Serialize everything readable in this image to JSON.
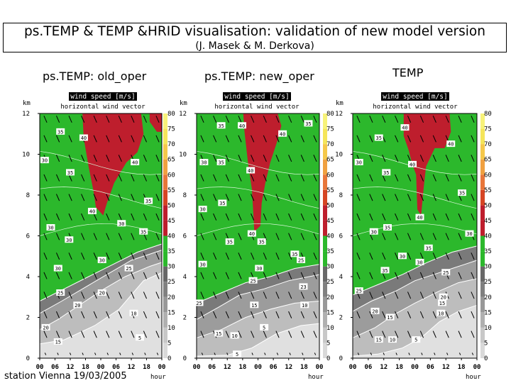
{
  "header": {
    "title": "ps.TEMP & TEMP &HRID visualisation: validation of new model version",
    "subtitle": "(J. Masek & M. Derkova)"
  },
  "footer": {
    "station": "station Vienna 19/03/2005"
  },
  "colors": {
    "green": "#2cb82c",
    "red": "#be1e2d",
    "dark_grey": "#6e6e6e",
    "mid_grey": "#9a9a9a",
    "light_grey": "#c8c8c8",
    "pale_grey": "#e3e3e3"
  },
  "chart_data": [
    {
      "type": "heatmap",
      "title": "ps.TEMP: old_oper",
      "plot_title": "wind speed [m/s]",
      "subtitle": "horizontal wind vector",
      "ylabel": "km",
      "xlabel": "hour",
      "x_ticks": [
        "00",
        "06",
        "12",
        "18",
        "00",
        "06",
        "12",
        "18",
        "00"
      ],
      "y_ticks": [
        0,
        2,
        4,
        6,
        8,
        10,
        12
      ],
      "ylim": [
        0,
        12
      ],
      "colorbar_ticks": [
        0,
        5,
        10,
        15,
        20,
        25,
        30,
        35,
        40,
        45,
        50,
        55,
        60,
        65,
        70,
        75,
        80
      ],
      "contour_labels": [
        {
          "value": 35,
          "x": 0.17,
          "y": 11.1
        },
        {
          "value": 40,
          "x": 0.36,
          "y": 10.8
        },
        {
          "value": 30,
          "x": 0.04,
          "y": 9.7
        },
        {
          "value": 35,
          "x": 0.25,
          "y": 9.1
        },
        {
          "value": 40,
          "x": 0.78,
          "y": 9.6
        },
        {
          "value": 35,
          "x": 0.89,
          "y": 7.7
        },
        {
          "value": 40,
          "x": 0.43,
          "y": 7.2
        },
        {
          "value": 30,
          "x": 0.09,
          "y": 6.4
        },
        {
          "value": 30,
          "x": 0.67,
          "y": 6.6
        },
        {
          "value": 35,
          "x": 0.85,
          "y": 6.2
        },
        {
          "value": 30,
          "x": 0.24,
          "y": 5.8
        },
        {
          "value": 30,
          "x": 0.51,
          "y": 4.8
        },
        {
          "value": 30,
          "x": 0.15,
          "y": 4.4
        },
        {
          "value": 25,
          "x": 0.73,
          "y": 4.4
        },
        {
          "value": 25,
          "x": 0.17,
          "y": 3.2
        },
        {
          "value": 20,
          "x": 0.51,
          "y": 3.2
        },
        {
          "value": 20,
          "x": 0.31,
          "y": 2.6
        },
        {
          "value": 10,
          "x": 0.77,
          "y": 2.2
        },
        {
          "value": 20,
          "x": 0.05,
          "y": 1.5
        },
        {
          "value": 5,
          "x": 0.82,
          "y": 1.0
        },
        {
          "value": 15,
          "x": 0.15,
          "y": 0.8
        }
      ]
    },
    {
      "type": "heatmap",
      "title": "ps.TEMP: new_oper",
      "plot_title": "wind speed [m/s]",
      "subtitle": "horizontal wind vector",
      "ylabel": "km",
      "xlabel": "hour",
      "x_ticks": [
        "00",
        "06",
        "12",
        "18",
        "00",
        "06",
        "12",
        "18",
        "00"
      ],
      "y_ticks": [
        0,
        2,
        4,
        6,
        8,
        10,
        12
      ],
      "ylim": [
        0,
        12
      ],
      "colorbar_ticks": [
        0,
        5,
        10,
        15,
        20,
        25,
        30,
        35,
        40,
        45,
        50,
        55,
        60,
        65,
        70,
        75,
        80
      ],
      "contour_labels": [
        {
          "value": 35,
          "x": 0.2,
          "y": 11.4
        },
        {
          "value": 40,
          "x": 0.37,
          "y": 11.4
        },
        {
          "value": 35,
          "x": 0.91,
          "y": 11.5
        },
        {
          "value": 40,
          "x": 0.7,
          "y": 11.0
        },
        {
          "value": 30,
          "x": 0.06,
          "y": 9.6
        },
        {
          "value": 35,
          "x": 0.2,
          "y": 9.6
        },
        {
          "value": 40,
          "x": 0.44,
          "y": 9.2
        },
        {
          "value": 30,
          "x": 0.05,
          "y": 7.3
        },
        {
          "value": 35,
          "x": 0.21,
          "y": 7.6
        },
        {
          "value": 40,
          "x": 0.45,
          "y": 6.1
        },
        {
          "value": 35,
          "x": 0.27,
          "y": 5.7
        },
        {
          "value": 35,
          "x": 0.53,
          "y": 5.7
        },
        {
          "value": 35,
          "x": 0.8,
          "y": 5.1
        },
        {
          "value": 30,
          "x": 0.05,
          "y": 4.6
        },
        {
          "value": 30,
          "x": 0.51,
          "y": 4.4
        },
        {
          "value": 25,
          "x": 0.85,
          "y": 4.8
        },
        {
          "value": 25,
          "x": 0.46,
          "y": 3.8
        },
        {
          "value": 25,
          "x": 0.02,
          "y": 2.7
        },
        {
          "value": 23,
          "x": 0.87,
          "y": 3.5
        },
        {
          "value": 15,
          "x": 0.47,
          "y": 2.6
        },
        {
          "value": 10,
          "x": 0.88,
          "y": 2.6
        },
        {
          "value": 5,
          "x": 0.55,
          "y": 1.5
        },
        {
          "value": 15,
          "x": 0.18,
          "y": 1.2
        },
        {
          "value": 10,
          "x": 0.31,
          "y": 1.1
        },
        {
          "value": 5,
          "x": 0.33,
          "y": 0.2
        }
      ]
    },
    {
      "type": "heatmap",
      "title": "TEMP",
      "plot_title": "wind speed [m/s]",
      "subtitle": "horizontal wind vector",
      "ylabel": "km",
      "xlabel": "hour",
      "x_ticks": [
        "00",
        "06",
        "12",
        "18",
        "00",
        "06",
        "12",
        "18",
        "00"
      ],
      "y_ticks": [
        0,
        2,
        4,
        6,
        8,
        10,
        12
      ],
      "ylim": [
        0,
        12
      ],
      "colorbar_ticks": [
        0,
        5,
        10,
        15,
        20,
        25,
        30,
        35,
        40,
        45,
        50,
        55,
        60,
        65,
        70,
        75,
        80
      ],
      "contour_labels": [
        {
          "value": 40,
          "x": 0.42,
          "y": 11.3
        },
        {
          "value": 35,
          "x": 0.21,
          "y": 10.8
        },
        {
          "value": 40,
          "x": 0.79,
          "y": 10.5
        },
        {
          "value": 30,
          "x": 0.05,
          "y": 9.6
        },
        {
          "value": 40,
          "x": 0.48,
          "y": 9.5
        },
        {
          "value": 35,
          "x": 0.27,
          "y": 9.1
        },
        {
          "value": 35,
          "x": 0.88,
          "y": 8.1
        },
        {
          "value": 40,
          "x": 0.54,
          "y": 6.9
        },
        {
          "value": 35,
          "x": 0.28,
          "y": 6.4
        },
        {
          "value": 30,
          "x": 0.17,
          "y": 6.2
        },
        {
          "value": 30,
          "x": 0.94,
          "y": 6.1
        },
        {
          "value": 35,
          "x": 0.61,
          "y": 5.4
        },
        {
          "value": 30,
          "x": 0.4,
          "y": 5.0
        },
        {
          "value": 35,
          "x": 0.26,
          "y": 4.3
        },
        {
          "value": 30,
          "x": 0.54,
          "y": 4.7
        },
        {
          "value": 25,
          "x": 0.75,
          "y": 4.2
        },
        {
          "value": 25,
          "x": 0.05,
          "y": 3.3
        },
        {
          "value": 20,
          "x": 0.73,
          "y": 3.0
        },
        {
          "value": 15,
          "x": 0.72,
          "y": 2.7
        },
        {
          "value": 10,
          "x": 0.71,
          "y": 2.2
        },
        {
          "value": 20,
          "x": 0.18,
          "y": 2.3
        },
        {
          "value": 15,
          "x": 0.3,
          "y": 2.0
        },
        {
          "value": 10,
          "x": 0.32,
          "y": 0.9
        },
        {
          "value": 15,
          "x": 0.21,
          "y": 0.9
        },
        {
          "value": 5,
          "x": 0.51,
          "y": 0.9
        }
      ]
    }
  ]
}
